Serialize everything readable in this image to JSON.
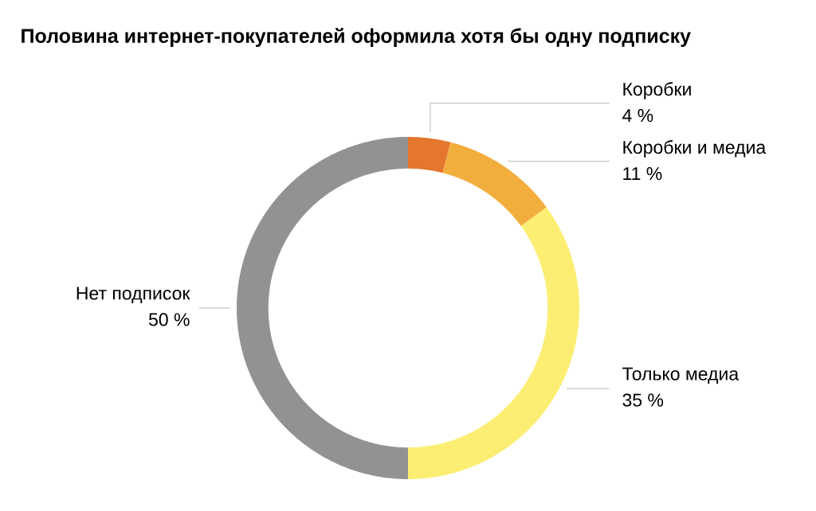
{
  "chart_data": {
    "type": "donut",
    "title": "Половина интернет-покупателей оформила хотя бы одну подписку",
    "categories": [
      "Коробки",
      "Коробки и медиа",
      "Только медиа",
      "Нет подписок"
    ],
    "values": [
      4,
      11,
      35,
      50
    ],
    "value_labels": [
      "4 %",
      "11 %",
      "35 %",
      "50 %"
    ],
    "colors": [
      "#e5762d",
      "#f2ae3d",
      "#fcee73",
      "#929292"
    ]
  }
}
